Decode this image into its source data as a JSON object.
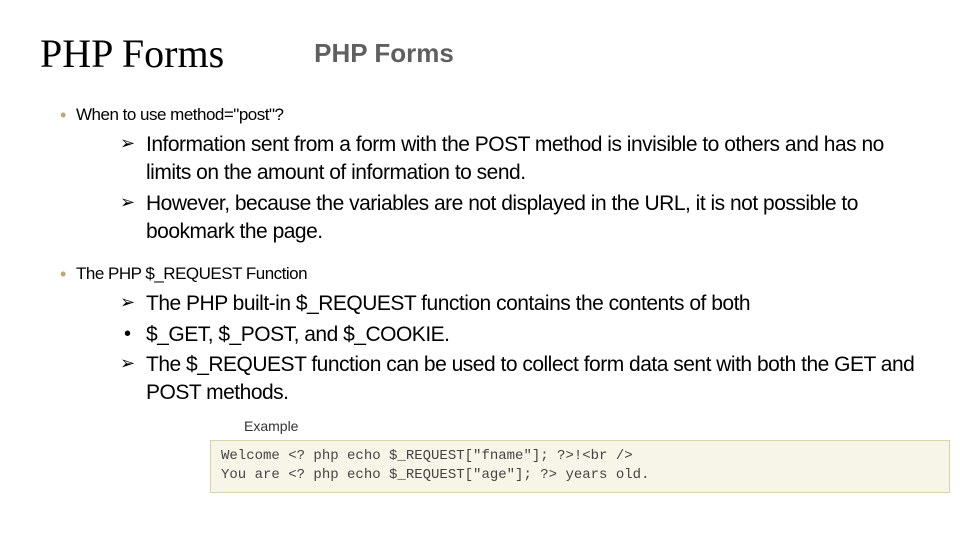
{
  "title_left": "PHP Forms",
  "title_right": "PHP Forms",
  "section1": {
    "heading": "When to use method=\"post\"?",
    "items": [
      "Information sent from a form with the POST method is invisible to others  and has no limits on the amount of information to send.",
      "However, because the variables are not displayed in the URL, it is not  possible to bookmark the page."
    ]
  },
  "section2": {
    "heading": "The PHP $_REQUEST Function",
    "items": [
      "The PHP built-in $_REQUEST function contains the contents of both",
      "$_GET, $_POST, and $_COOKIE.",
      "The $_REQUEST function can be used to collect form data sent with both  the GET and POST methods."
    ]
  },
  "example": {
    "label": "Example",
    "code": "Welcome <? php echo $_REQUEST[\"fname\"]; ?>!<br />\nYou are <? php echo $_REQUEST[\"age\"]; ?> years old."
  },
  "colors": {
    "bullet_marker": "#b8a87a",
    "title_right_color": "#5f5f5f",
    "code_bg": "#f7f5e8",
    "code_border": "#d8d4b0",
    "code_text": "#444444"
  },
  "typography": {
    "title_left_family": "Georgia",
    "title_left_size": 40,
    "title_right_family": "Arial",
    "title_right_size": 26,
    "bullet_size": 17,
    "arrow_size": 21,
    "code_size": 14
  }
}
